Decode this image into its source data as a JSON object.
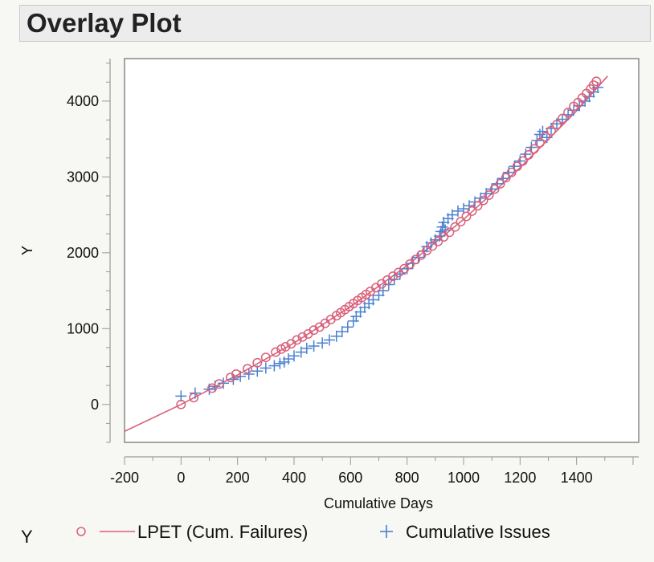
{
  "header": {
    "title": "Overlay Plot"
  },
  "colors": {
    "failures": "#d9607a",
    "issues": "#4a80d0",
    "axis": "#999999",
    "frame": "#888888"
  },
  "chart_data": {
    "type": "scatter",
    "xlabel": "Cumulative Days",
    "ylabel": "Y",
    "xlim": [
      -200,
      1620
    ],
    "ylim": [
      -500,
      4560
    ],
    "x_ticks": [
      -200,
      0,
      200,
      400,
      600,
      800,
      1000,
      1200,
      1400
    ],
    "y_ticks": [
      0,
      1000,
      2000,
      3000,
      4000
    ],
    "legend": {
      "group_label": "Y",
      "placement": "bottom"
    },
    "series": [
      {
        "name": "LPET (Cum. Failures)",
        "marker": "circle",
        "x": [
          0,
          45,
          110,
          135,
          175,
          195,
          235,
          270,
          300,
          335,
          355,
          370,
          390,
          410,
          430,
          450,
          470,
          490,
          510,
          530,
          550,
          565,
          580,
          595,
          610,
          625,
          640,
          655,
          670,
          690,
          710,
          730,
          750,
          770,
          790,
          810,
          830,
          850,
          870,
          890,
          910,
          930,
          950,
          970,
          990,
          1010,
          1030,
          1050,
          1070,
          1090,
          1110,
          1130,
          1150,
          1170,
          1190,
          1210,
          1230,
          1250,
          1270,
          1290,
          1310,
          1330,
          1350,
          1370,
          1390,
          1405,
          1420,
          1435,
          1450,
          1460,
          1470
        ],
        "y": [
          0,
          90,
          215,
          270,
          355,
          400,
          470,
          550,
          620,
          690,
          730,
          760,
          800,
          850,
          890,
          930,
          980,
          1020,
          1070,
          1120,
          1170,
          1210,
          1250,
          1290,
          1330,
          1370,
          1410,
          1450,
          1490,
          1540,
          1590,
          1640,
          1690,
          1740,
          1790,
          1850,
          1910,
          1970,
          2030,
          2090,
          2150,
          2210,
          2270,
          2340,
          2410,
          2480,
          2550,
          2620,
          2690,
          2760,
          2840,
          2910,
          2990,
          3060,
          3140,
          3210,
          3290,
          3370,
          3450,
          3530,
          3610,
          3690,
          3770,
          3850,
          3930,
          3980,
          4040,
          4100,
          4160,
          4210,
          4260
        ]
      },
      {
        "name": "LPET (Cum. Failures)",
        "marker": "line",
        "x": [
          -200,
          0,
          200,
          400,
          600,
          800,
          1000,
          1200,
          1400,
          1510
        ],
        "y": [
          -355,
          0,
          390,
          810,
          1290,
          1830,
          2440,
          3120,
          3870,
          4330
        ]
      },
      {
        "name": "Cumulative Issues",
        "marker": "plus",
        "x": [
          0,
          50,
          100,
          120,
          150,
          185,
          210,
          240,
          270,
          300,
          330,
          350,
          365,
          380,
          400,
          425,
          445,
          470,
          500,
          525,
          550,
          570,
          590,
          610,
          620,
          635,
          650,
          665,
          680,
          700,
          715,
          735,
          755,
          775,
          800,
          820,
          840,
          860,
          870,
          885,
          900,
          915,
          920,
          925,
          930,
          935,
          945,
          960,
          980,
          1000,
          1020,
          1040,
          1060,
          1080,
          1100,
          1120,
          1140,
          1160,
          1180,
          1200,
          1220,
          1240,
          1260,
          1270,
          1280,
          1295,
          1310,
          1330,
          1350,
          1370,
          1390,
          1410,
          1430,
          1445,
          1460,
          1475
        ],
        "y": [
          110,
          150,
          200,
          240,
          280,
          330,
          370,
          400,
          440,
          480,
          510,
          540,
          560,
          600,
          640,
          690,
          740,
          770,
          810,
          850,
          900,
          960,
          1020,
          1100,
          1160,
          1220,
          1280,
          1330,
          1380,
          1440,
          1500,
          1580,
          1650,
          1720,
          1790,
          1860,
          1940,
          2020,
          2080,
          2130,
          2170,
          2220,
          2280,
          2340,
          2400,
          2300,
          2450,
          2500,
          2550,
          2580,
          2620,
          2670,
          2720,
          2780,
          2840,
          2910,
          2980,
          3060,
          3140,
          3210,
          3300,
          3390,
          3480,
          3560,
          3600,
          3520,
          3640,
          3700,
          3760,
          3820,
          3880,
          3940,
          4000,
          4060,
          4120,
          4180
        ]
      }
    ]
  }
}
